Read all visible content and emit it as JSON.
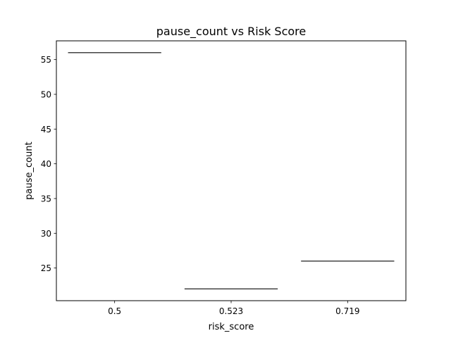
{
  "chart_data": {
    "type": "box",
    "title": "pause_count vs Risk Score",
    "xlabel": "risk_score",
    "ylabel": "pause_count",
    "categories": [
      "0.5",
      "0.523",
      "0.719"
    ],
    "values": [
      56,
      22,
      26
    ],
    "ylim": [
      20.3,
      57.7
    ],
    "yticks": [
      25,
      30,
      35,
      40,
      45,
      50,
      55
    ],
    "grid": false,
    "box_color": "#444444"
  }
}
